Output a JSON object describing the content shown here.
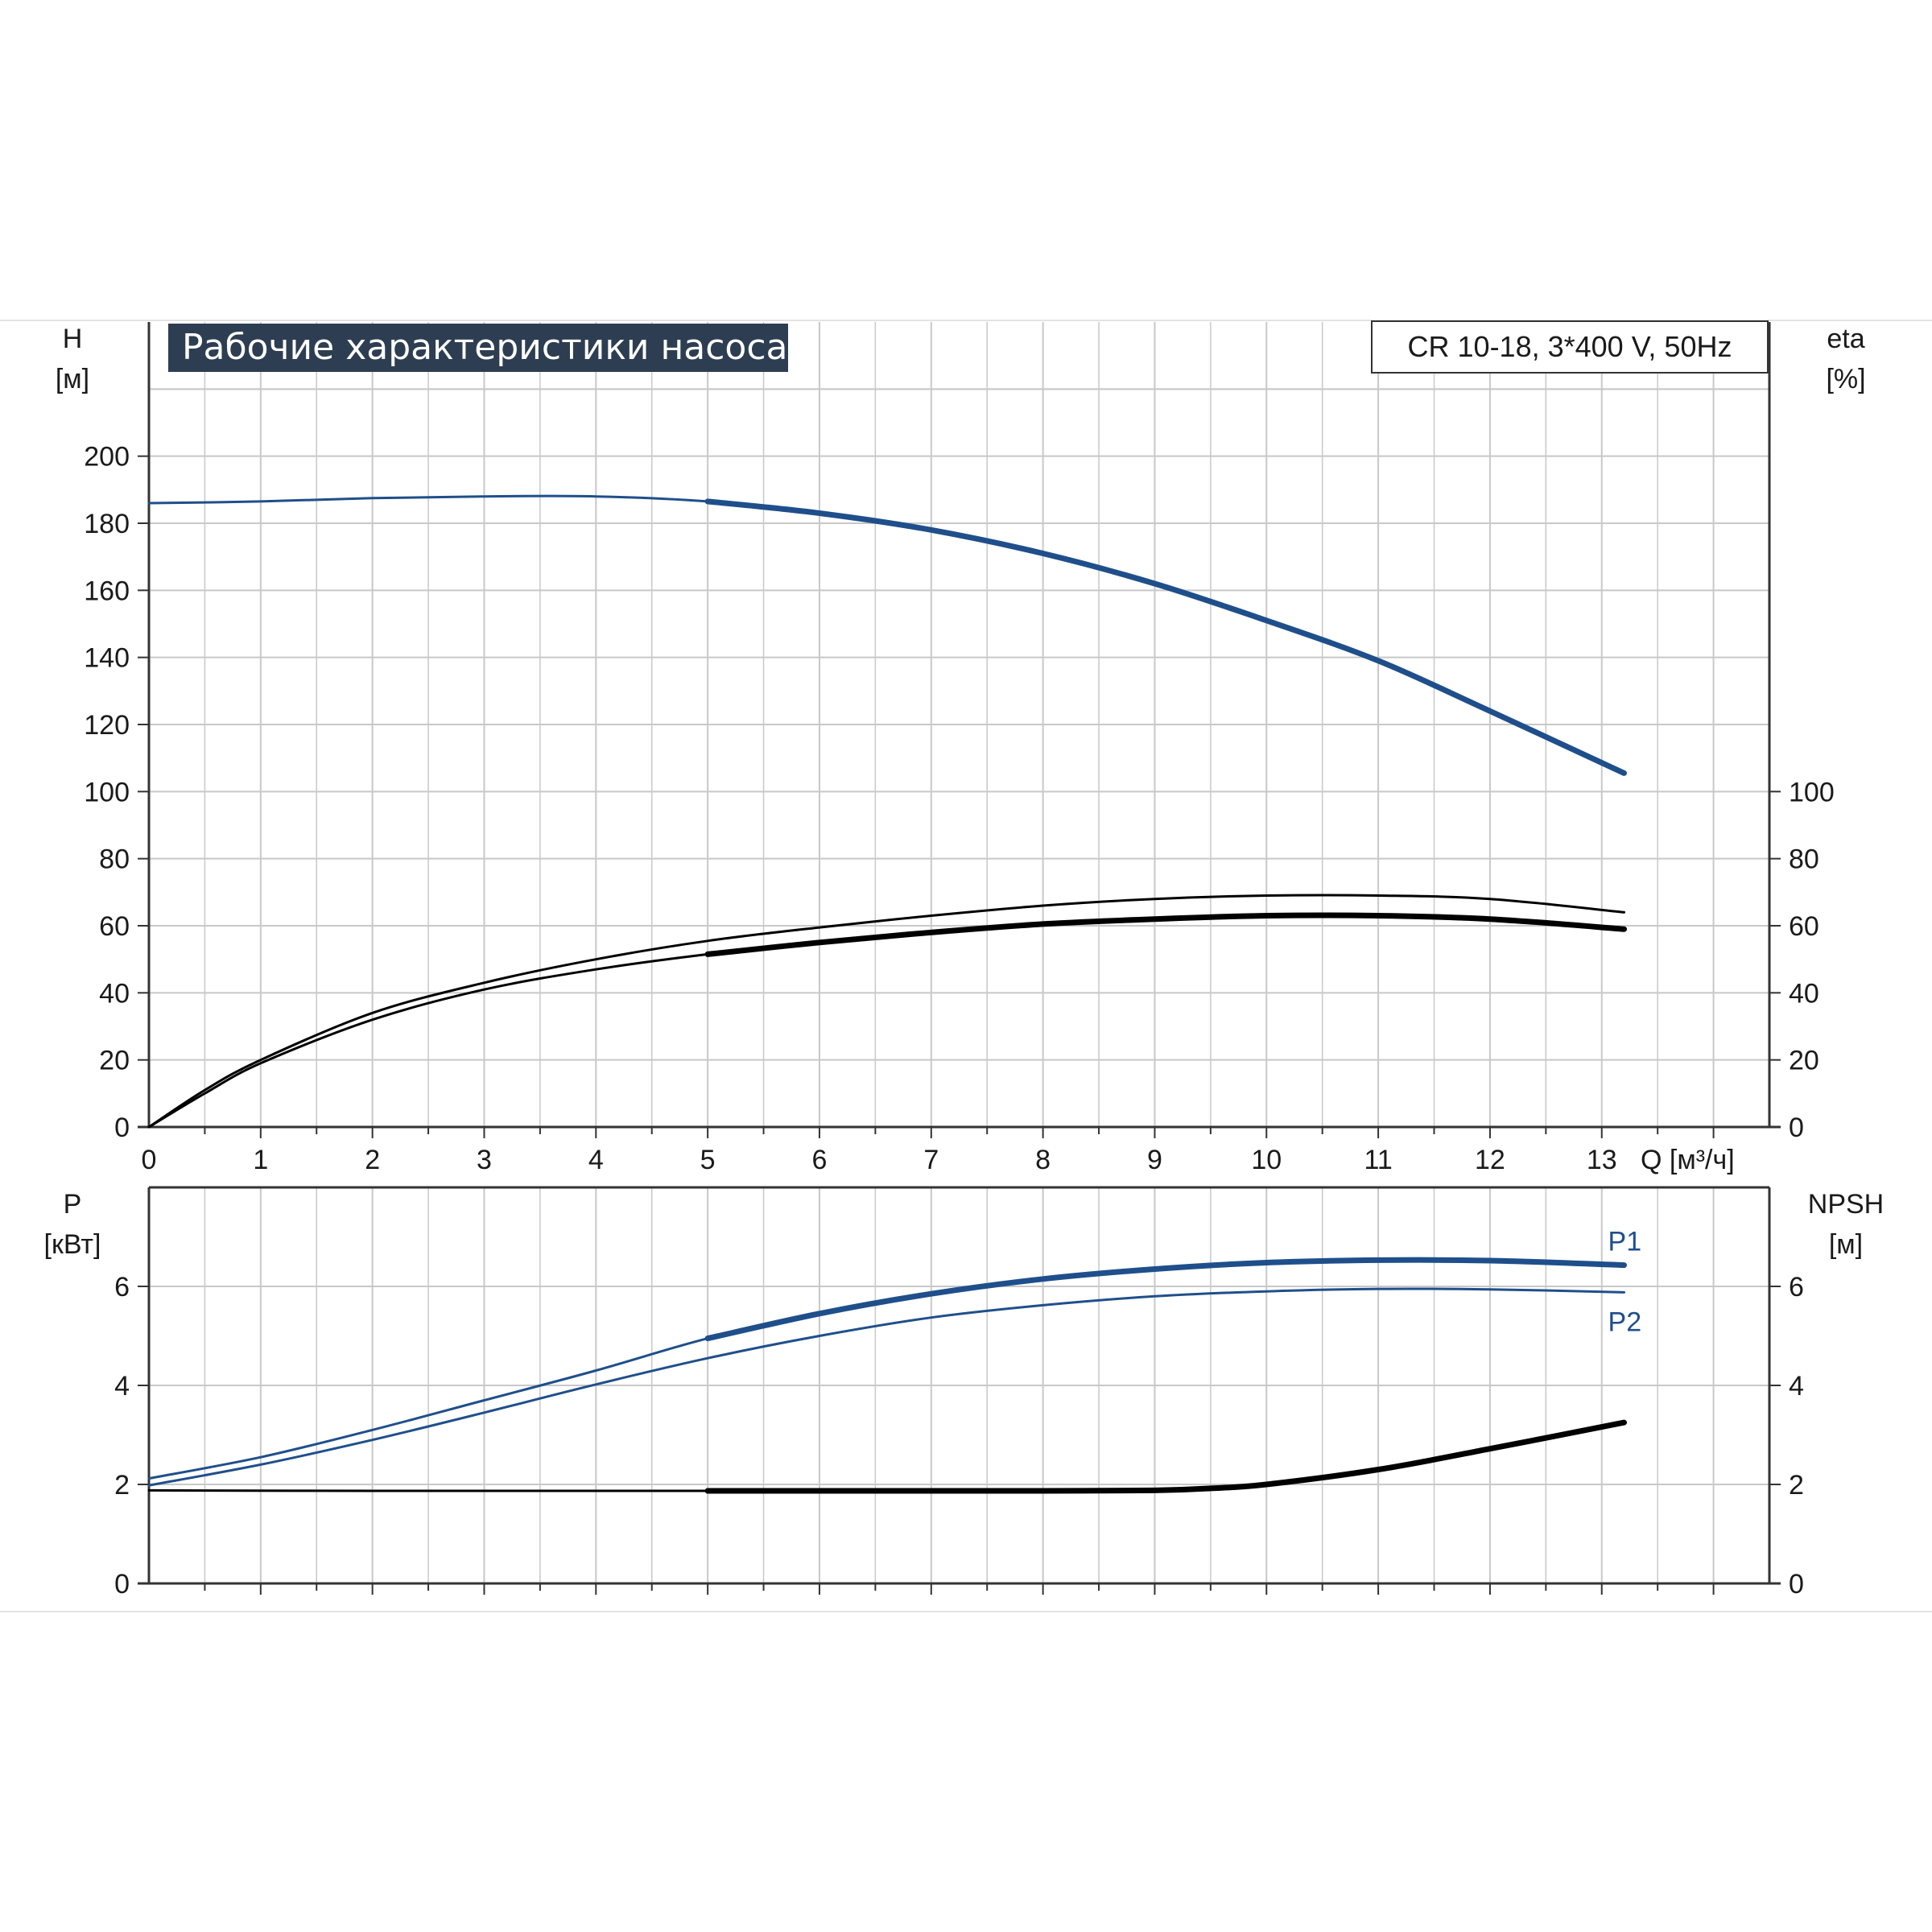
{
  "title": "Рабочие характеристики насоса",
  "model_label": "CR 10-18, 3*400 V, 50Hz",
  "colors": {
    "blue": "#1f4f8b",
    "black": "#000000",
    "grid": "#c4c4c4",
    "title_bg": "#2d3e52"
  },
  "chart_data": [
    {
      "type": "line",
      "name": "upper",
      "x_axis": {
        "label": "Q [м³/ч]",
        "ticks": [
          "0",
          "1",
          "2",
          "3",
          "4",
          "5",
          "6",
          "7",
          "8",
          "9",
          "10",
          "11",
          "12",
          "13"
        ],
        "range": [
          0,
          14.5
        ]
      },
      "y_left": {
        "label_top": "H",
        "label_unit": "[м]",
        "ticks": [
          "0",
          "20",
          "40",
          "60",
          "80",
          "100",
          "120",
          "140",
          "160",
          "180",
          "200"
        ],
        "range": [
          0,
          240
        ]
      },
      "y_right": {
        "label_top": "eta",
        "label_unit": "[%]",
        "ticks": [
          "0",
          "20",
          "40",
          "60",
          "80",
          "100"
        ],
        "range": [
          0,
          240
        ]
      },
      "grid": true,
      "series": [
        {
          "x": [
            0,
            1,
            2,
            3,
            4,
            5,
            6,
            7,
            8,
            9,
            10,
            11,
            12,
            13.2
          ],
          "y": [
            186,
            186.5,
            187.5,
            188,
            188,
            186.5,
            183,
            178,
            171,
            162,
            151,
            139,
            124,
            105.5
          ],
          "color": "blue",
          "axis": "left",
          "thick_from": 5
        },
        {
          "x": [
            0,
            0.5,
            1,
            2,
            3,
            4,
            5,
            6,
            7,
            8,
            9,
            10,
            11,
            12,
            13.2
          ],
          "y": [
            0,
            11,
            20,
            34,
            43,
            50,
            55.5,
            59.5,
            63,
            66,
            68,
            69,
            69,
            68,
            64
          ],
          "color": "black",
          "axis": "right",
          "thick_from": 99
        },
        {
          "x": [
            0,
            0.5,
            1,
            2,
            3,
            4,
            5,
            6,
            7,
            8,
            9,
            10,
            11,
            12,
            13.2
          ],
          "y": [
            0,
            10,
            19,
            32,
            41,
            47,
            51.5,
            55,
            58,
            60.5,
            62,
            63,
            63,
            62,
            59
          ],
          "color": "black",
          "axis": "right",
          "thick_from": 5
        }
      ]
    },
    {
      "type": "line",
      "name": "lower",
      "x_axis": {
        "ticks": [],
        "range": [
          0,
          14.5
        ]
      },
      "y_left": {
        "label_top": "P",
        "label_unit": "[кВт]",
        "ticks": [
          "0",
          "2",
          "4",
          "6"
        ],
        "range": [
          0,
          8
        ]
      },
      "y_right": {
        "label_top": "NPSH",
        "label_unit": "[м]",
        "ticks": [
          "0",
          "2",
          "4",
          "6"
        ],
        "range": [
          0,
          8
        ]
      },
      "grid": true,
      "series": [
        {
          "name": "P1",
          "x": [
            0,
            1,
            2,
            3,
            4,
            5,
            6,
            7,
            8,
            9,
            10,
            11,
            12,
            13.2
          ],
          "y": [
            2.12,
            2.55,
            3.1,
            3.7,
            4.3,
            4.95,
            5.45,
            5.85,
            6.15,
            6.35,
            6.48,
            6.53,
            6.52,
            6.43
          ],
          "color": "blue",
          "axis": "left",
          "thick_from": 5
        },
        {
          "name": "P2",
          "x": [
            0,
            1,
            2,
            3,
            4,
            5,
            6,
            7,
            8,
            9,
            10,
            11,
            12,
            13.2
          ],
          "y": [
            1.98,
            2.4,
            2.9,
            3.45,
            4.02,
            4.55,
            5.0,
            5.37,
            5.62,
            5.8,
            5.9,
            5.95,
            5.94,
            5.88
          ],
          "color": "blue",
          "axis": "left",
          "thick_from": 99
        },
        {
          "x": [
            0,
            2,
            4,
            5,
            6,
            7,
            8,
            9,
            9.5,
            10,
            11,
            12,
            13.2
          ],
          "y": [
            1.88,
            1.87,
            1.87,
            1.87,
            1.87,
            1.87,
            1.87,
            1.88,
            1.92,
            2.0,
            2.3,
            2.72,
            3.25
          ],
          "color": "black",
          "axis": "right",
          "thick_from": 5
        }
      ]
    }
  ]
}
